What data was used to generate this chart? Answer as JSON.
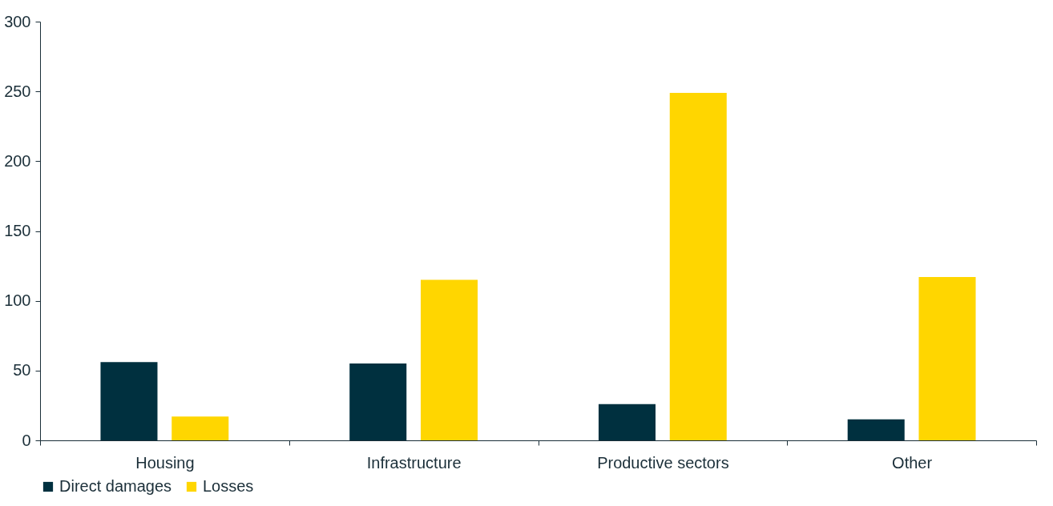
{
  "chart_data": {
    "type": "bar",
    "categories": [
      "Housing",
      "Infrastructure",
      "Productive sectors",
      "Other"
    ],
    "series": [
      {
        "name": "Direct damages",
        "color": "#00303f",
        "values": [
          56,
          55,
          26,
          15
        ]
      },
      {
        "name": "Losses",
        "color": "#ffd600",
        "values": [
          17,
          115,
          249,
          117
        ]
      }
    ],
    "ylim": [
      0,
      300
    ],
    "yticks": [
      0,
      50,
      100,
      150,
      200,
      250,
      300
    ],
    "grid": false,
    "legend": "bottom"
  }
}
